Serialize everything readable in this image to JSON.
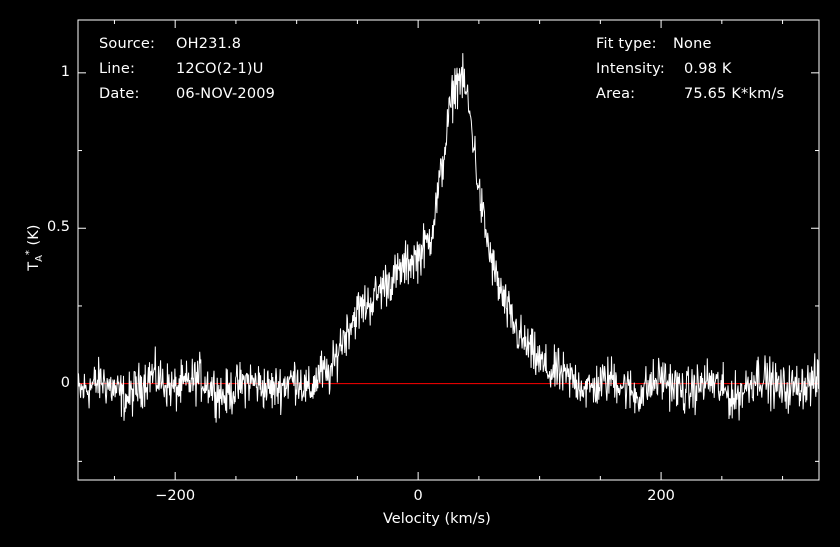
{
  "header": {
    "source_label": "Source:",
    "source_value": "OH231.8",
    "line_label": "Line:",
    "line_value": "12CO(2-1)U",
    "date_label": "Date:",
    "date_value": "06-NOV-2009",
    "fit_label": "Fit type:",
    "fit_value": "None",
    "intensity_label": "Intensity:",
    "intensity_value": "0.98 K",
    "area_label": "Area:",
    "area_value": "75.65 K*km/s"
  },
  "chart_data": {
    "type": "line",
    "xlabel": "Velocity (km/s)",
    "ylabel": "T_A* (K)",
    "xlim": [
      -280,
      330
    ],
    "ylim": [
      -0.31,
      1.17
    ],
    "x_ticks": [
      -200,
      0,
      200
    ],
    "x_tick_labels": [
      "−200",
      "0",
      "200"
    ],
    "y_ticks": [
      0,
      0.5,
      1
    ],
    "y_tick_labels": [
      "0",
      "0.5",
      "1"
    ],
    "baseline": 0,
    "colors": {
      "background": "#000000",
      "axes": "#ffffff",
      "spectrum": "#ffffff",
      "baseline": "#ff0000"
    },
    "series": [
      {
        "x": [
          -280,
          -260,
          -240,
          -220,
          -200,
          -180,
          -160,
          -140,
          -120,
          -100,
          -90,
          -80,
          -75,
          -70,
          -65,
          -60,
          -55,
          -50,
          -45,
          -40,
          -35,
          -30,
          -25,
          -20,
          -15,
          -10,
          -5,
          0,
          5,
          10,
          15,
          20,
          25,
          30,
          35,
          40,
          45,
          50,
          55,
          60,
          65,
          70,
          75,
          80,
          85,
          90,
          95,
          100,
          105,
          110,
          115,
          120,
          130,
          140,
          160,
          180,
          200,
          220,
          240,
          260,
          280,
          300,
          330
        ],
        "y": [
          -0.03,
          0.01,
          -0.05,
          0.03,
          -0.02,
          0.02,
          -0.04,
          0.01,
          -0.02,
          0.02,
          -0.03,
          0.04,
          0.02,
          0.05,
          0.12,
          0.16,
          0.2,
          0.23,
          0.25,
          0.26,
          0.28,
          0.31,
          0.33,
          0.34,
          0.36,
          0.38,
          0.4,
          0.41,
          0.44,
          0.47,
          0.58,
          0.7,
          0.85,
          0.96,
          0.99,
          0.93,
          0.8,
          0.62,
          0.5,
          0.4,
          0.33,
          0.27,
          0.22,
          0.18,
          0.14,
          0.12,
          0.09,
          0.07,
          0.05,
          0.03,
          0.04,
          0.02,
          0.01,
          -0.02,
          0.02,
          -0.04,
          0.02,
          -0.03,
          0.01,
          -0.05,
          0.03,
          -0.02,
          0.01
        ]
      }
    ]
  }
}
